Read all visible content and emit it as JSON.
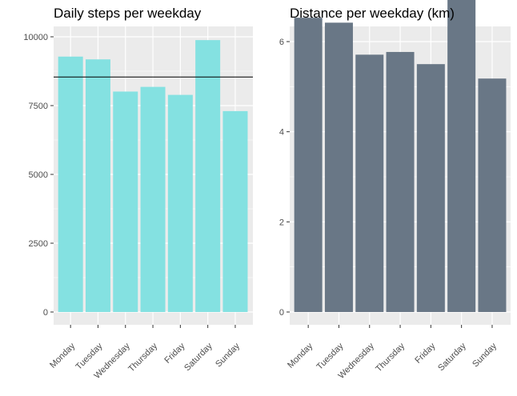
{
  "chart_data": [
    {
      "type": "bar",
      "title": "Daily steps per weekday",
      "categories": [
        "Monday",
        "Tuesday",
        "Wednesday",
        "Thursday",
        "Friday",
        "Saturday",
        "Sunday"
      ],
      "values": [
        9280,
        9180,
        8010,
        8180,
        7890,
        9880,
        7300
      ],
      "reference_line": 8540,
      "ylim": [
        0,
        10000
      ],
      "yticks": [
        0,
        2500,
        5000,
        7500,
        10000
      ],
      "ytick_labels": [
        "0",
        "2500",
        "5000",
        "7500",
        "10000"
      ],
      "xlabel": "",
      "ylabel": "",
      "grid": true,
      "bar_color": "#84E1E1",
      "panel_background": "#EBEBEB"
    },
    {
      "type": "bar",
      "title": "Distance per weekday (km)",
      "categories": [
        "Monday",
        "Tuesday",
        "Wednesday",
        "Thursday",
        "Friday",
        "Saturday",
        "Sunday"
      ],
      "values": [
        6.53,
        6.42,
        5.71,
        5.77,
        5.5,
        6.98,
        5.18
      ],
      "ylim": [
        0,
        7.2
      ],
      "yticks": [
        0,
        2,
        4,
        6
      ],
      "ytick_labels": [
        "0",
        "2",
        "4",
        "6"
      ],
      "xlabel": "",
      "ylabel": "",
      "grid": true,
      "bar_color": "#697786",
      "panel_background": "#EBEBEB"
    }
  ]
}
